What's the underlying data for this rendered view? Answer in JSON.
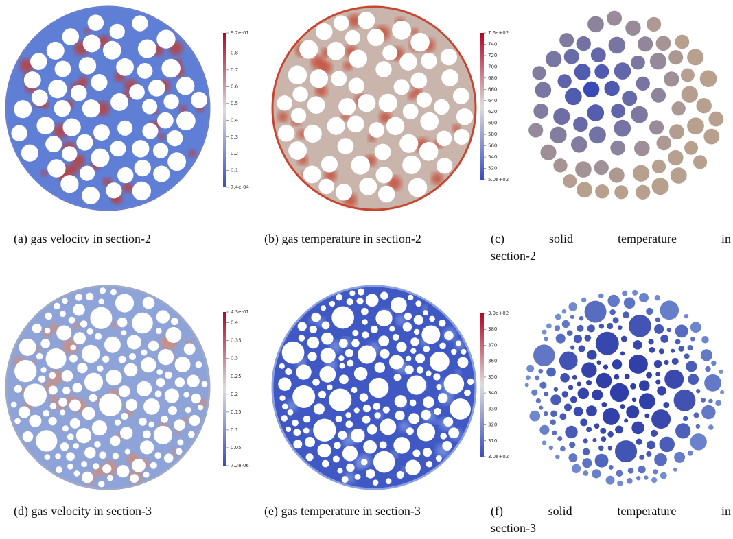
{
  "panels": [
    {
      "caption": "(a) gas velocity in section-2",
      "colorbar": [
        "9.2e-01",
        "0.8",
        "0.7",
        "0.6",
        "0.5",
        "0.4",
        "0.3",
        "0.2",
        "0.1",
        "7.4e-04"
      ]
    },
    {
      "caption": "(b) gas temperature in section-2",
      "colorbar": [
        "7.6e+02",
        "740",
        "720",
        "700",
        "680",
        "660",
        "640",
        "620",
        "600",
        "580",
        "560",
        "540",
        "520",
        "5.0e+02"
      ]
    },
    {
      "caption": "(c) solid temperature in section-2"
    },
    {
      "caption": "(d) gas velocity in section-3",
      "colorbar": [
        "4.3e-01",
        "0.4",
        "0.35",
        "0.3",
        "0.25",
        "0.2",
        "0.15",
        "0.1",
        "0.05",
        "7.2e-06"
      ]
    },
    {
      "caption": "(e) gas temperature in section-3",
      "colorbar": [
        "3.9e+02",
        "380",
        "370",
        "360",
        "350",
        "340",
        "330",
        "320",
        "310",
        "3.0e+02"
      ]
    },
    {
      "caption": "(f) solid temperature in section-3"
    }
  ]
}
